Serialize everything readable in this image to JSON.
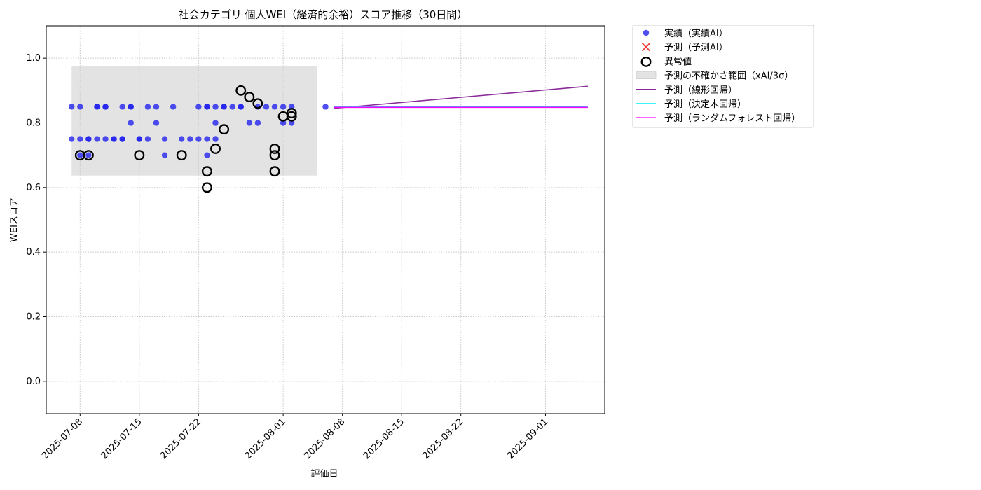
{
  "chart_data": {
    "type": "scatter",
    "title": "社会カテゴリ 個人WEI（経済的余裕）スコア推移（30日間）",
    "xlabel": "評価日",
    "ylabel": "WEIスコア",
    "xlim": [
      "2025-07-04",
      "2025-09-08"
    ],
    "ylim": [
      -0.1,
      1.1
    ],
    "yticks": [
      0.0,
      0.2,
      0.4,
      0.6,
      0.8,
      1.0
    ],
    "yticklabels": [
      "0.0",
      "0.2",
      "0.4",
      "0.6",
      "0.8",
      "1.0"
    ],
    "xticks": [
      "2025-07-08",
      "2025-07-15",
      "2025-07-22",
      "2025-08-01",
      "2025-08-08",
      "2025-08-15",
      "2025-08-22",
      "2025-09-01"
    ],
    "grid": true,
    "legend_position": "outside-top-right",
    "uncertainty_band": {
      "x_start": "2025-07-07",
      "x_end": "2025-08-05",
      "y_low": 0.637,
      "y_high": 0.975,
      "color": "#e3e3e3"
    },
    "series": [
      {
        "name": "実績（実績AI）",
        "kind": "scatter",
        "color": "#2222ee",
        "points": [
          [
            "2025-07-07",
            0.85
          ],
          [
            "2025-07-07",
            0.75
          ],
          [
            "2025-07-08",
            0.85
          ],
          [
            "2025-07-08",
            0.75
          ],
          [
            "2025-07-08",
            0.7
          ],
          [
            "2025-07-09",
            0.75
          ],
          [
            "2025-07-09",
            0.7
          ],
          [
            "2025-07-09",
            0.75
          ],
          [
            "2025-07-10",
            0.85
          ],
          [
            "2025-07-10",
            0.75
          ],
          [
            "2025-07-10",
            0.85
          ],
          [
            "2025-07-11",
            0.85
          ],
          [
            "2025-07-11",
            0.75
          ],
          [
            "2025-07-11",
            0.85
          ],
          [
            "2025-07-12",
            0.75
          ],
          [
            "2025-07-12",
            0.75
          ],
          [
            "2025-07-13",
            0.85
          ],
          [
            "2025-07-13",
            0.75
          ],
          [
            "2025-07-13",
            0.75
          ],
          [
            "2025-07-14",
            0.8
          ],
          [
            "2025-07-14",
            0.85
          ],
          [
            "2025-07-14",
            0.85
          ],
          [
            "2025-07-15",
            0.75
          ],
          [
            "2025-07-15",
            0.75
          ],
          [
            "2025-07-16",
            0.85
          ],
          [
            "2025-07-16",
            0.75
          ],
          [
            "2025-07-17",
            0.8
          ],
          [
            "2025-07-17",
            0.85
          ],
          [
            "2025-07-18",
            0.75
          ],
          [
            "2025-07-18",
            0.7
          ],
          [
            "2025-07-19",
            0.85
          ],
          [
            "2025-07-20",
            0.75
          ],
          [
            "2025-07-21",
            0.75
          ],
          [
            "2025-07-22",
            0.85
          ],
          [
            "2025-07-22",
            0.75
          ],
          [
            "2025-07-23",
            0.85
          ],
          [
            "2025-07-23",
            0.75
          ],
          [
            "2025-07-23",
            0.7
          ],
          [
            "2025-07-23",
            0.85
          ],
          [
            "2025-07-24",
            0.8
          ],
          [
            "2025-07-24",
            0.85
          ],
          [
            "2025-07-24",
            0.75
          ],
          [
            "2025-07-25",
            0.85
          ],
          [
            "2025-07-25",
            0.85
          ],
          [
            "2025-07-26",
            0.85
          ],
          [
            "2025-07-27",
            0.85
          ],
          [
            "2025-07-27",
            0.85
          ],
          [
            "2025-07-28",
            0.8
          ],
          [
            "2025-07-29",
            0.85
          ],
          [
            "2025-07-29",
            0.8
          ],
          [
            "2025-07-30",
            0.85
          ],
          [
            "2025-07-31",
            0.85
          ],
          [
            "2025-08-01",
            0.85
          ],
          [
            "2025-08-01",
            0.8
          ],
          [
            "2025-08-02",
            0.85
          ],
          [
            "2025-08-02",
            0.8
          ],
          [
            "2025-08-06",
            0.85
          ]
        ]
      },
      {
        "name": "予測（予測AI）",
        "kind": "scatter",
        "color": "#ee3333",
        "marker": "x",
        "points": []
      },
      {
        "name": "異常値",
        "kind": "scatter",
        "color": "#000000",
        "marker": "circle-open",
        "points": [
          [
            "2025-07-08",
            0.7
          ],
          [
            "2025-07-09",
            0.7
          ],
          [
            "2025-07-15",
            0.7
          ],
          [
            "2025-07-20",
            0.7
          ],
          [
            "2025-07-23",
            0.65
          ],
          [
            "2025-07-23",
            0.6
          ],
          [
            "2025-07-24",
            0.72
          ],
          [
            "2025-07-25",
            0.78
          ],
          [
            "2025-07-27",
            0.9
          ],
          [
            "2025-07-28",
            0.88
          ],
          [
            "2025-07-29",
            0.86
          ],
          [
            "2025-07-31",
            0.7
          ],
          [
            "2025-07-31",
            0.72
          ],
          [
            "2025-07-31",
            0.65
          ],
          [
            "2025-08-01",
            0.82
          ],
          [
            "2025-08-02",
            0.82
          ],
          [
            "2025-08-02",
            0.83
          ]
        ]
      },
      {
        "name": "予測の不確かさ範囲（xAI/3σ）",
        "kind": "band",
        "color": "#e3e3e3"
      },
      {
        "name": "予測（線形回帰）",
        "kind": "line",
        "color": "#8a2a9a",
        "points": [
          [
            "2025-08-07",
            0.845
          ],
          [
            "2025-09-06",
            0.913
          ]
        ]
      },
      {
        "name": "予測（決定木回帰）",
        "kind": "line",
        "color": "#00eeee",
        "points": [
          [
            "2025-08-07",
            0.85
          ],
          [
            "2025-09-06",
            0.85
          ]
        ]
      },
      {
        "name": "予測（ランダムフォレスト回帰）",
        "kind": "line",
        "color": "#ff00ff",
        "points": [
          [
            "2025-08-07",
            0.848
          ],
          [
            "2025-09-06",
            0.848
          ]
        ]
      }
    ]
  }
}
